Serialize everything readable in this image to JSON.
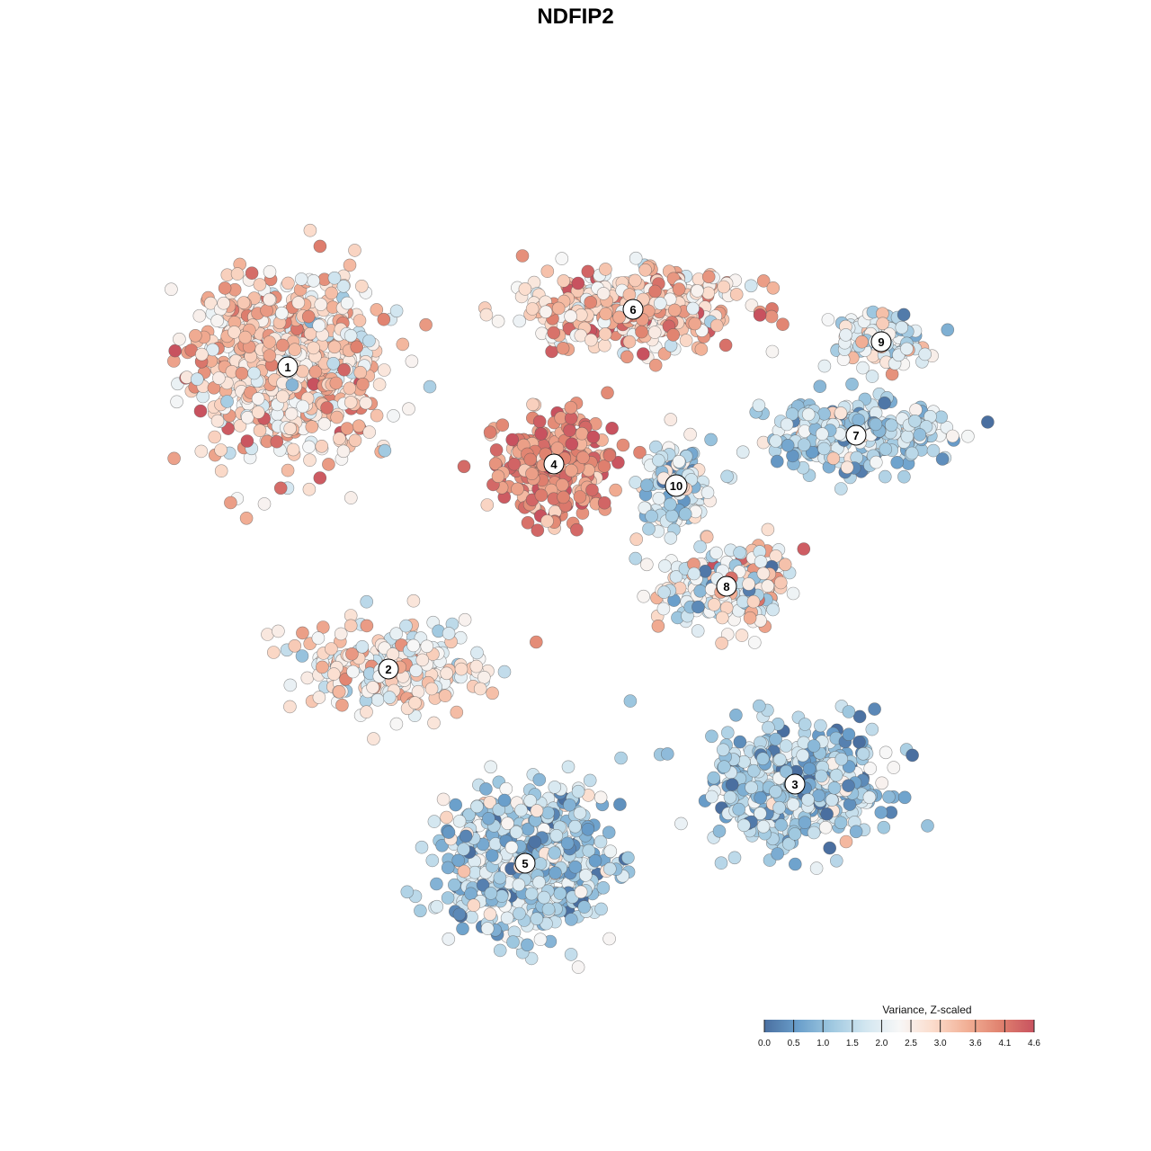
{
  "chart_data": {
    "type": "scatter",
    "title": "NDFIP2",
    "xlabel": "",
    "ylabel": "",
    "grid": false,
    "axes_visible": false,
    "legend_placement": "bottom-right",
    "colorbar": {
      "title": "Variance, Z-scaled",
      "range": [
        0.0,
        4.6
      ],
      "ticks": [
        "0.0",
        "0.5",
        "1.0",
        "1.5",
        "2.0",
        "2.5",
        "3.0",
        "3.6",
        "4.1",
        "4.6"
      ],
      "tick_values": [
        0.0,
        0.5,
        1.0,
        1.5,
        2.0,
        2.5,
        3.0,
        3.6,
        4.1,
        4.6
      ],
      "colors": [
        "#4a6fa0",
        "#6a9fcb",
        "#9fc8e0",
        "#d2e6f0",
        "#f7f7f7",
        "#fbdccc",
        "#f2b096",
        "#e0826f",
        "#c8525f"
      ]
    },
    "clusters": [
      {
        "label": "1",
        "x": -8.0,
        "y": 5.8,
        "mean_expression": 2.9
      },
      {
        "label": "2",
        "x": -5.2,
        "y": -2.6,
        "mean_expression": 2.6
      },
      {
        "label": "3",
        "x": 6.1,
        "y": -5.8,
        "mean_expression": 1.2
      },
      {
        "label": "4",
        "x": -0.6,
        "y": 3.1,
        "mean_expression": 3.9
      },
      {
        "label": "5",
        "x": -1.4,
        "y": -8.0,
        "mean_expression": 1.4
      },
      {
        "label": "6",
        "x": 1.6,
        "y": 7.4,
        "mean_expression": 3.2
      },
      {
        "label": "7",
        "x": 7.8,
        "y": 3.9,
        "mean_expression": 1.5
      },
      {
        "label": "8",
        "x": 4.2,
        "y": -0.3,
        "mean_expression": 2.2
      },
      {
        "label": "9",
        "x": 8.5,
        "y": 6.5,
        "mean_expression": 2.0
      },
      {
        "label": "10",
        "x": 2.8,
        "y": 2.5,
        "mean_expression": 1.6
      }
    ]
  }
}
